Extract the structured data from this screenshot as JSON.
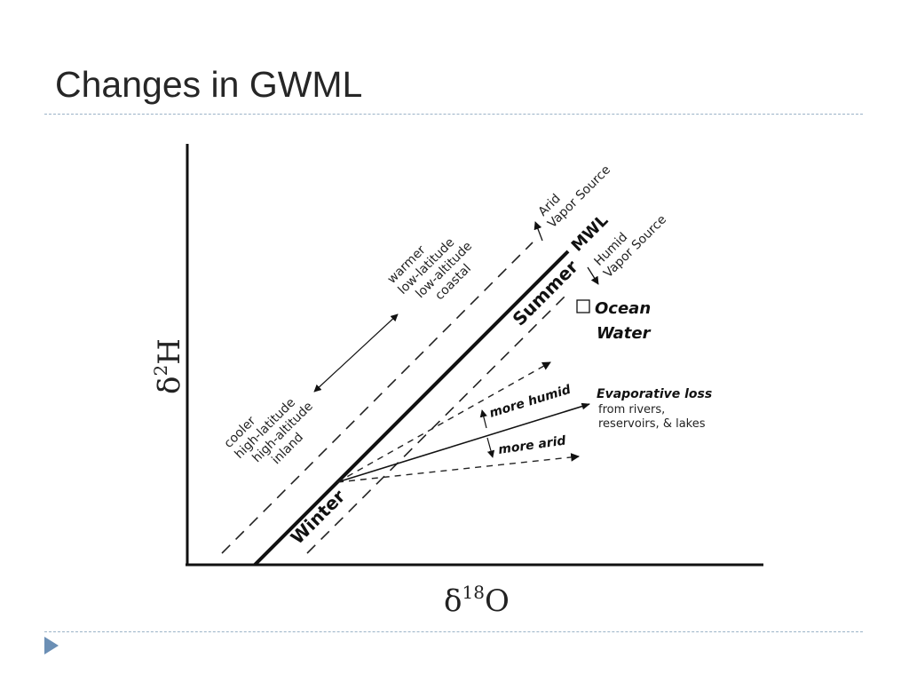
{
  "title": "Changes in GWML",
  "diagram": {
    "y_axis": {
      "symbol": "δ",
      "superscript": "2",
      "element": "H"
    },
    "x_axis": {
      "symbol": "δ",
      "superscript": "18",
      "element": "O"
    },
    "mwl_label": "MWL",
    "summer_label": "Summer",
    "winter_label": "Winter",
    "arid_vapor_source": [
      "Arid",
      "Vapor Source"
    ],
    "humid_vapor_source": [
      "Humid",
      "Vapor Source"
    ],
    "ocean_water": [
      "Ocean",
      "Water"
    ],
    "warmer_group": [
      "warmer",
      "low-latitude",
      "low-altitude",
      "coastal"
    ],
    "cooler_group": [
      "cooler",
      "high-latitude",
      "high-altitude",
      "inland"
    ],
    "more_humid": "more humid",
    "more_arid": "more arid",
    "evaporative_loss": "Evaporative loss",
    "evaporative_sources": [
      "from rivers,",
      "reservoirs, & lakes"
    ]
  }
}
